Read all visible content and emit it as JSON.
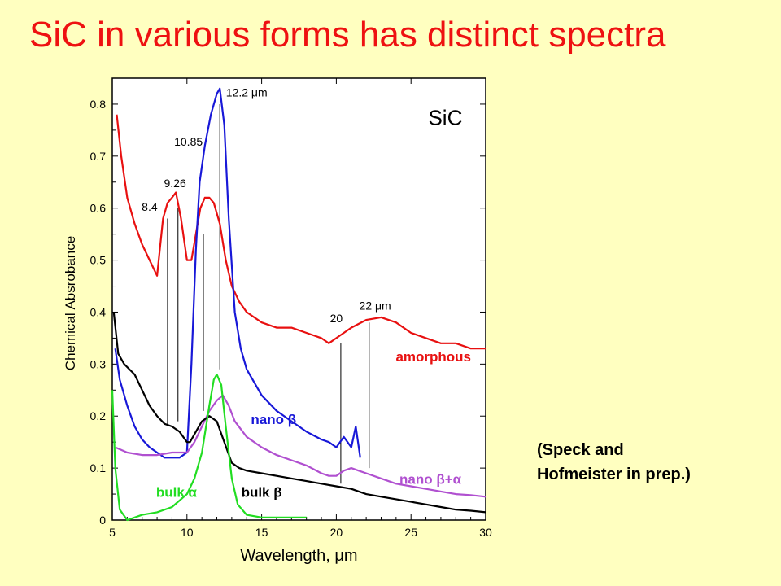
{
  "title": "SiC in various forms has distinct spectra",
  "note": {
    "line1": "(Speck and",
    "line2": "Hofmeister in prep.)"
  },
  "chart_data": {
    "type": "line",
    "title": "",
    "xlabel": "Wavelength, μm",
    "ylabel": "Chemical Absrobance",
    "xlim": [
      5,
      30
    ],
    "ylim": [
      0,
      0.85
    ],
    "xticks": [
      5,
      10,
      15,
      20,
      25,
      30
    ],
    "yticks": [
      0,
      0.1,
      0.2,
      0.3,
      0.4,
      0.5,
      0.6,
      0.7,
      0.8
    ],
    "ytick_labels": [
      "0",
      "0.1",
      "0.2",
      "0.3",
      "0.4",
      "0.5",
      "0.6",
      "0.7",
      "0.8"
    ],
    "grid": false,
    "inset_label": "SiC",
    "series": [
      {
        "name": "amorphous",
        "color": "#e81010",
        "x": [
          5.3,
          5.6,
          6.0,
          6.5,
          7.0,
          7.5,
          8.0,
          8.4,
          8.7,
          9.0,
          9.26,
          9.6,
          10.0,
          10.3,
          10.6,
          10.9,
          11.2,
          11.5,
          11.8,
          12.2,
          12.6,
          13.0,
          13.5,
          14.0,
          15.0,
          16.0,
          17.0,
          18.0,
          19.0,
          19.5,
          20.0,
          20.5,
          21.0,
          22.0,
          23.0,
          24.0,
          25.0,
          26.0,
          27.0,
          28.0,
          29.0,
          30.0
        ],
        "y": [
          0.78,
          0.7,
          0.62,
          0.57,
          0.53,
          0.5,
          0.47,
          0.58,
          0.61,
          0.62,
          0.63,
          0.58,
          0.5,
          0.5,
          0.55,
          0.6,
          0.62,
          0.62,
          0.61,
          0.57,
          0.5,
          0.45,
          0.42,
          0.4,
          0.38,
          0.37,
          0.37,
          0.36,
          0.35,
          0.34,
          0.35,
          0.36,
          0.37,
          0.385,
          0.39,
          0.38,
          0.36,
          0.35,
          0.34,
          0.34,
          0.33,
          0.33
        ]
      },
      {
        "name": "nano β",
        "color": "#1818d8",
        "x": [
          5.2,
          5.5,
          6.0,
          6.5,
          7.0,
          7.5,
          8.0,
          8.5,
          9.0,
          9.5,
          10.0,
          10.3,
          10.6,
          10.85,
          11.2,
          11.6,
          12.0,
          12.2,
          12.5,
          12.8,
          13.2,
          13.6,
          14.0,
          15.0,
          16.0,
          17.0,
          18.0,
          19.0,
          19.5,
          20.0,
          20.5,
          21.0,
          21.3,
          21.6
        ],
        "y": [
          0.33,
          0.27,
          0.22,
          0.18,
          0.155,
          0.14,
          0.13,
          0.12,
          0.12,
          0.12,
          0.13,
          0.3,
          0.52,
          0.65,
          0.72,
          0.78,
          0.82,
          0.83,
          0.76,
          0.58,
          0.4,
          0.33,
          0.29,
          0.24,
          0.21,
          0.19,
          0.17,
          0.155,
          0.15,
          0.14,
          0.16,
          0.14,
          0.18,
          0.12
        ]
      },
      {
        "name": "nano β+α",
        "color": "#b050d0",
        "x": [
          5.2,
          6.0,
          7.0,
          8.0,
          9.0,
          10.0,
          10.5,
          11.0,
          11.5,
          12.0,
          12.4,
          12.8,
          13.2,
          14.0,
          15.0,
          16.0,
          17.0,
          18.0,
          19.0,
          19.5,
          20.0,
          20.5,
          21.0,
          21.5,
          22.0,
          23.0,
          24.0,
          25.0,
          26.0,
          27.0,
          28.0,
          29.0,
          30.0
        ],
        "y": [
          0.14,
          0.13,
          0.125,
          0.125,
          0.13,
          0.13,
          0.15,
          0.18,
          0.21,
          0.23,
          0.24,
          0.22,
          0.19,
          0.16,
          0.14,
          0.125,
          0.115,
          0.105,
          0.09,
          0.085,
          0.085,
          0.095,
          0.1,
          0.095,
          0.09,
          0.08,
          0.07,
          0.065,
          0.06,
          0.055,
          0.05,
          0.048,
          0.045
        ]
      },
      {
        "name": "bulk β",
        "color": "#000000",
        "x": [
          5.1,
          5.4,
          5.8,
          6.5,
          7.0,
          7.5,
          8.0,
          8.5,
          9.0,
          9.5,
          10.0,
          10.2,
          10.6,
          11.0,
          11.5,
          12.0,
          12.5,
          13.0,
          13.5,
          14.0,
          15.0,
          16.0,
          17.0,
          18.0,
          19.0,
          20.0,
          21.0,
          22.0,
          23.0,
          24.0,
          25.0,
          26.0,
          27.0,
          28.0,
          29.0,
          30.0
        ],
        "y": [
          0.4,
          0.32,
          0.3,
          0.28,
          0.25,
          0.22,
          0.2,
          0.185,
          0.18,
          0.17,
          0.15,
          0.15,
          0.17,
          0.19,
          0.2,
          0.19,
          0.15,
          0.11,
          0.1,
          0.095,
          0.09,
          0.085,
          0.08,
          0.075,
          0.07,
          0.065,
          0.06,
          0.05,
          0.045,
          0.04,
          0.035,
          0.03,
          0.025,
          0.02,
          0.018,
          0.015
        ]
      },
      {
        "name": "bulk α",
        "color": "#22dd22",
        "x": [
          5.0,
          5.2,
          5.5,
          6.0,
          7.0,
          8.0,
          9.0,
          10.0,
          10.5,
          11.0,
          11.5,
          11.8,
          12.0,
          12.3,
          12.6,
          13.0,
          13.4,
          14.0,
          15.0,
          16.0,
          17.0,
          18.0
        ],
        "y": [
          0.25,
          0.1,
          0.02,
          0.0,
          0.01,
          0.015,
          0.025,
          0.05,
          0.08,
          0.13,
          0.22,
          0.27,
          0.28,
          0.26,
          0.18,
          0.08,
          0.03,
          0.01,
          0.005,
          0.005,
          0.005,
          0.005
        ]
      }
    ],
    "series_labels": [
      {
        "text": "amorphous",
        "x": 26.5,
        "y": 0.305,
        "color": "#e81010"
      },
      {
        "text": "nano β",
        "x": 15.8,
        "y": 0.185,
        "color": "#1818d8"
      },
      {
        "text": "nano β+α",
        "x": 26.3,
        "y": 0.07,
        "color": "#b050d0"
      },
      {
        "text": "bulk β",
        "x": 15.0,
        "y": 0.045,
        "color": "#000000"
      },
      {
        "text": "bulk α",
        "x": 9.3,
        "y": 0.045,
        "color": "#22dd22"
      }
    ],
    "annotations": [
      {
        "text": "8.4",
        "x": 7.5,
        "y": 0.595
      },
      {
        "text": "9.26",
        "x": 9.2,
        "y": 0.64
      },
      {
        "text": "10.85",
        "x": 10.1,
        "y": 0.72
      },
      {
        "text": "12.2 μm",
        "x": 14.0,
        "y": 0.815
      },
      {
        "text": "20",
        "x": 20.0,
        "y": 0.38
      },
      {
        "text": "22 μm",
        "x": 22.6,
        "y": 0.405
      }
    ],
    "marker_lines": [
      {
        "x": 8.7,
        "y1": 0.58,
        "y2": 0.18
      },
      {
        "x": 9.4,
        "y1": 0.6,
        "y2": 0.19
      },
      {
        "x": 11.1,
        "y1": 0.55,
        "y2": 0.21
      },
      {
        "x": 12.2,
        "y1": 0.8,
        "y2": 0.29
      },
      {
        "x": 20.3,
        "y1": 0.34,
        "y2": 0.07
      },
      {
        "x": 22.2,
        "y1": 0.38,
        "y2": 0.1
      }
    ]
  }
}
